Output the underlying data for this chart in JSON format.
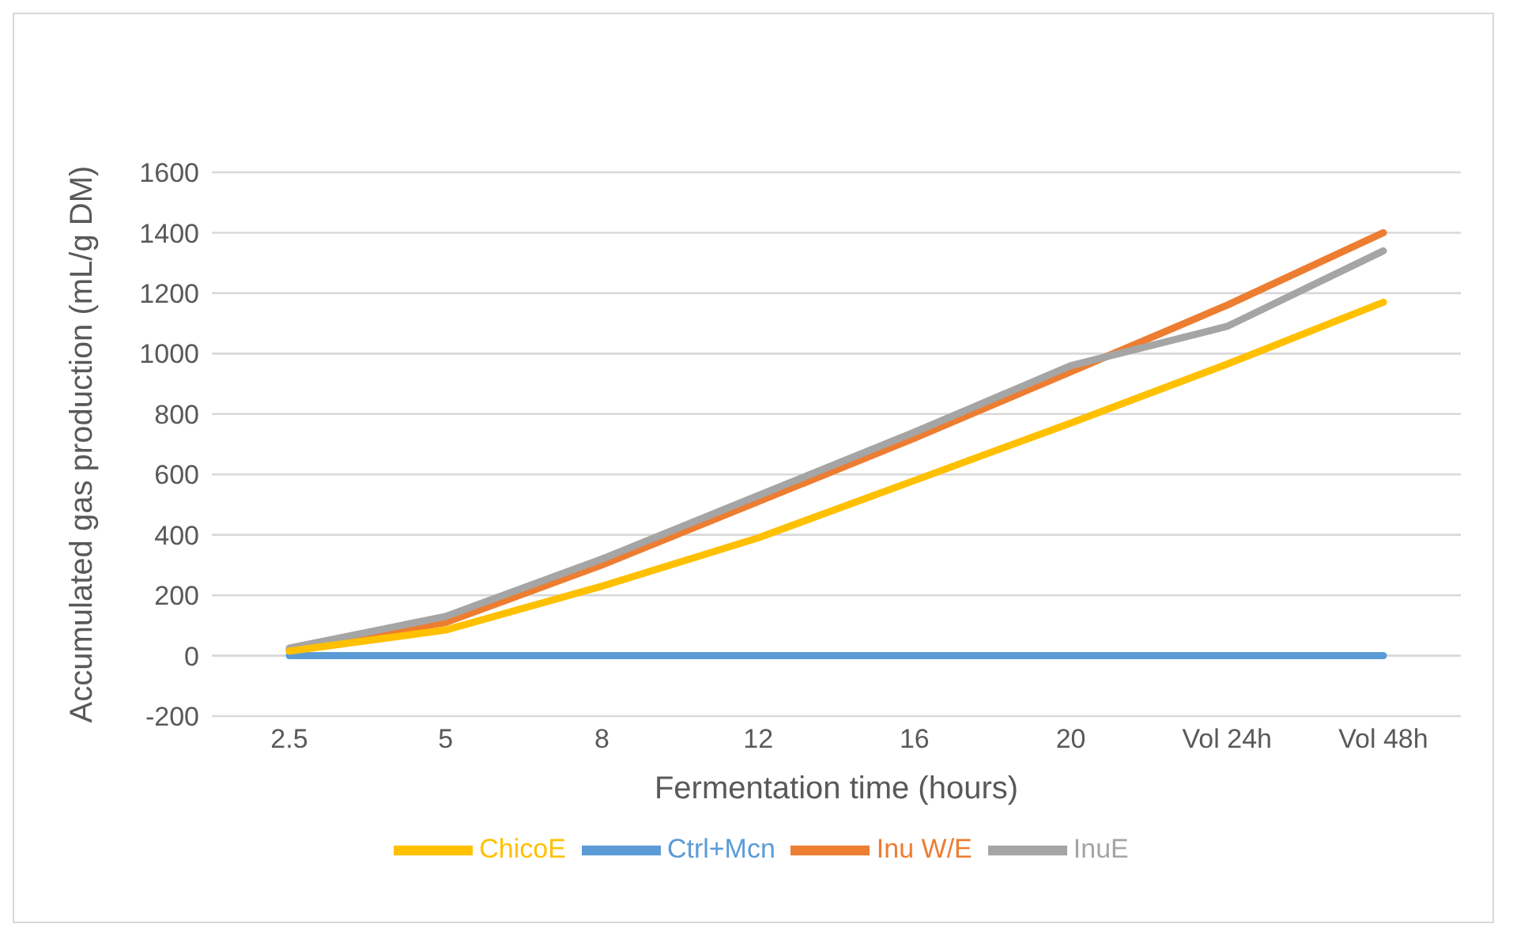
{
  "chart_data": {
    "type": "line",
    "xlabel": "Fermentation time (hours)",
    "ylabel": "Accumulated gas production (mL/g DM)",
    "categories": [
      "2.5",
      "5",
      "8",
      "12",
      "16",
      "20",
      "Vol 24h",
      "Vol 48h"
    ],
    "series": [
      {
        "name": "Ctrl+Mcn",
        "color": "#5b9bd5",
        "values": [
          0,
          0,
          0,
          0,
          0,
          0,
          0,
          0
        ]
      },
      {
        "name": "Inu W/E",
        "color": "#ed7d31",
        "values": [
          20,
          110,
          300,
          510,
          720,
          940,
          1160,
          1400
        ]
      },
      {
        "name": "InuE",
        "color": "#a5a5a5",
        "values": [
          25,
          130,
          320,
          530,
          740,
          960,
          1090,
          1340
        ]
      },
      {
        "name": "ChicoE",
        "color": "#ffc000",
        "values": [
          15,
          85,
          230,
          390,
          580,
          770,
          965,
          1170
        ]
      }
    ],
    "ylim": [
      -200,
      1600
    ],
    "yticks": [
      -200,
      0,
      200,
      400,
      600,
      800,
      1000,
      1200,
      1400,
      1600
    ],
    "grid": "y",
    "legend": "bottom",
    "marker": "none",
    "line_style": "solid"
  }
}
